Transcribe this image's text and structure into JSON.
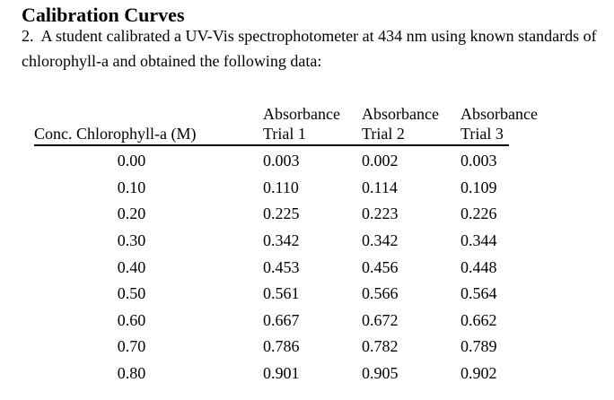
{
  "page": {
    "title": "Calibration Curves",
    "problem_lines": [
      "2.  A student calibrated a UV-Vis spectrophotometer at 434 nm using known standards of",
      "chlorophyll-a and obtained the following data:"
    ]
  },
  "table": {
    "absorbance_label": "Absorbance",
    "conc_header": "Conc. Chlorophyll-a (M)",
    "trial_headers": [
      "Trial 1",
      "Trial 2",
      "Trial 3"
    ],
    "rows": [
      {
        "conc": "0.00",
        "t1": "0.003",
        "t2": "0.002",
        "t3": "0.003"
      },
      {
        "conc": "0.10",
        "t1": "0.110",
        "t2": "0.114",
        "t3": "0.109"
      },
      {
        "conc": "0.20",
        "t1": "0.225",
        "t2": "0.223",
        "t3": "0.226"
      },
      {
        "conc": "0.30",
        "t1": "0.342",
        "t2": "0.342",
        "t3": "0.344"
      },
      {
        "conc": "0.40",
        "t1": "0.453",
        "t2": "0.456",
        "t3": "0.448"
      },
      {
        "conc": "0.50",
        "t1": "0.561",
        "t2": "0.566",
        "t3": "0.564"
      },
      {
        "conc": "0.60",
        "t1": "0.667",
        "t2": "0.672",
        "t3": "0.662"
      },
      {
        "conc": "0.70",
        "t1": "0.786",
        "t2": "0.782",
        "t3": "0.789"
      },
      {
        "conc": "0.80",
        "t1": "0.901",
        "t2": "0.905",
        "t3": "0.902"
      }
    ]
  }
}
